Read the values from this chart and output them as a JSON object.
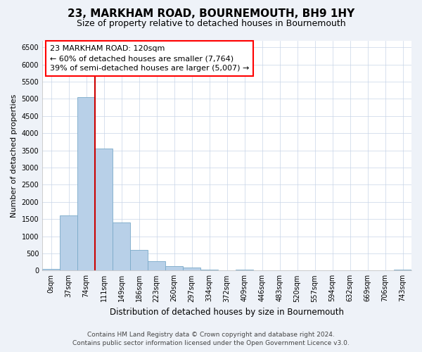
{
  "title": "23, MARKHAM ROAD, BOURNEMOUTH, BH9 1HY",
  "subtitle": "Size of property relative to detached houses in Bournemouth",
  "xlabel": "Distribution of detached houses by size in Bournemouth",
  "ylabel": "Number of detached properties",
  "footer_line1": "Contains HM Land Registry data © Crown copyright and database right 2024.",
  "footer_line2": "Contains public sector information licensed under the Open Government Licence v3.0.",
  "bar_labels": [
    "0sqm",
    "37sqm",
    "74sqm",
    "111sqm",
    "149sqm",
    "186sqm",
    "223sqm",
    "260sqm",
    "297sqm",
    "334sqm",
    "372sqm",
    "409sqm",
    "446sqm",
    "483sqm",
    "520sqm",
    "557sqm",
    "594sqm",
    "632sqm",
    "669sqm",
    "706sqm",
    "743sqm"
  ],
  "bar_values": [
    50,
    1600,
    5050,
    3550,
    1400,
    600,
    280,
    130,
    80,
    30,
    10,
    20,
    10,
    5,
    2,
    1,
    0,
    0,
    0,
    0,
    20
  ],
  "bar_color": "#b8d0e8",
  "bar_edge_color": "#7aaac8",
  "vline_color": "#cc0000",
  "vline_x_index": 3,
  "annotation_text": "23 MARKHAM ROAD: 120sqm\n← 60% of detached houses are smaller (7,764)\n39% of semi-detached houses are larger (5,007) →",
  "ylim": [
    0,
    6700
  ],
  "yticks": [
    0,
    500,
    1000,
    1500,
    2000,
    2500,
    3000,
    3500,
    4000,
    4500,
    5000,
    5500,
    6000,
    6500
  ],
  "bg_color": "#eef2f8",
  "plot_bg_color": "#ffffff",
  "grid_color": "#c8d4e8",
  "title_fontsize": 11,
  "subtitle_fontsize": 9,
  "xlabel_fontsize": 8.5,
  "ylabel_fontsize": 8,
  "tick_fontsize": 7,
  "annotation_fontsize": 8,
  "footer_fontsize": 6.5
}
